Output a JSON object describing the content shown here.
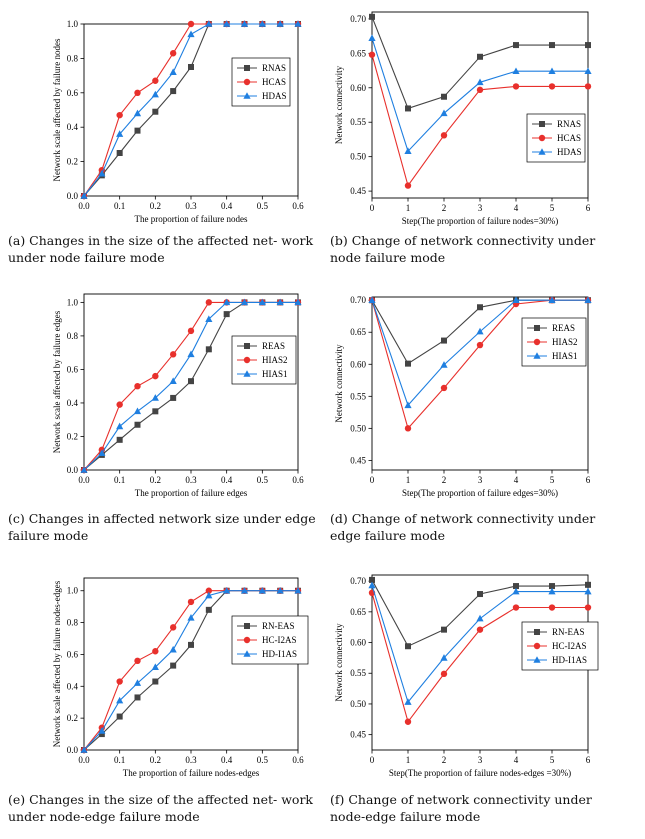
{
  "colors": {
    "black": "#444444",
    "red": "#e8302c",
    "blue": "#1f7fe0"
  },
  "chart_data": [
    {
      "id": "a",
      "type": "line",
      "caption": "(a) Changes in the size of the affected net- work under node failure mode",
      "xlabel": "The proportion of failure nodes",
      "ylabel": "Network scale affected by failure nodes",
      "x": [
        0,
        0.05,
        0.1,
        0.15,
        0.2,
        0.25,
        0.3,
        0.35,
        0.4,
        0.45,
        0.5,
        0.55,
        0.6
      ],
      "xlim": [
        0,
        0.6
      ],
      "ylim": [
        0,
        1.0
      ],
      "xticks": [
        "0.0",
        "0.1",
        "0.2",
        "0.3",
        "0.4",
        "0.5",
        "0.6"
      ],
      "yticks": [
        "0.0",
        "0.2",
        "0.4",
        "0.6",
        "0.8",
        "1.0"
      ],
      "legend_position": "top-right",
      "series": [
        {
          "name": "RNAS",
          "color": "black",
          "marker": "square",
          "values": [
            0,
            0.12,
            0.25,
            0.38,
            0.49,
            0.61,
            0.75,
            1.0,
            1.0,
            1.0,
            1.0,
            1.0,
            1.0
          ]
        },
        {
          "name": "HCAS",
          "color": "red",
          "marker": "circle",
          "values": [
            0,
            0.15,
            0.47,
            0.6,
            0.67,
            0.83,
            1.0,
            1.0,
            1.0,
            1.0,
            1.0,
            1.0,
            1.0
          ]
        },
        {
          "name": "HDAS",
          "color": "blue",
          "marker": "triangle",
          "values": [
            0,
            0.13,
            0.36,
            0.48,
            0.59,
            0.72,
            0.94,
            1.0,
            1.0,
            1.0,
            1.0,
            1.0,
            1.0
          ]
        }
      ]
    },
    {
      "id": "b",
      "type": "line",
      "caption": "(b) Change of network connectivity under node failure mode",
      "xlabel": "Step(The proportion of failure nodes=30%)",
      "ylabel": "Network connectivity",
      "x": [
        0,
        1,
        2,
        3,
        4,
        5,
        6
      ],
      "xlim": [
        0,
        6
      ],
      "ylim": [
        0.44,
        0.71
      ],
      "xticks": [
        "0",
        "1",
        "2",
        "3",
        "4",
        "5",
        "6"
      ],
      "yticks": [
        "0.45",
        "0.50",
        "0.55",
        "0.60",
        "0.65",
        "0.70"
      ],
      "legend_position": "bottom-right",
      "series": [
        {
          "name": "RNAS",
          "color": "black",
          "marker": "square",
          "values": [
            0.703,
            0.57,
            0.587,
            0.645,
            0.662,
            0.662,
            0.662
          ]
        },
        {
          "name": "HCAS",
          "color": "red",
          "marker": "circle",
          "values": [
            0.648,
            0.458,
            0.531,
            0.597,
            0.602,
            0.602,
            0.602
          ]
        },
        {
          "name": "HDAS",
          "color": "blue",
          "marker": "triangle",
          "values": [
            0.672,
            0.508,
            0.563,
            0.608,
            0.624,
            0.624,
            0.624
          ]
        }
      ]
    },
    {
      "id": "c",
      "type": "line",
      "caption": "(c) Changes in affected network size under edge failure mode",
      "xlabel": "The proportion of failure edges",
      "ylabel": "Network scale affected by failure edges",
      "x": [
        0,
        0.05,
        0.1,
        0.15,
        0.2,
        0.25,
        0.3,
        0.35,
        0.4,
        0.45,
        0.5,
        0.55,
        0.6
      ],
      "xlim": [
        0,
        0.6
      ],
      "ylim": [
        0,
        1.05
      ],
      "xticks": [
        "0.0",
        "0.1",
        "0.2",
        "0.3",
        "0.4",
        "0.5",
        "0.6"
      ],
      "yticks": [
        "0.0",
        "0.2",
        "0.4",
        "0.6",
        "0.8",
        "1.0"
      ],
      "legend_position": "right",
      "series": [
        {
          "name": "REAS",
          "color": "black",
          "marker": "square",
          "values": [
            0,
            0.09,
            0.18,
            0.27,
            0.35,
            0.43,
            0.53,
            0.72,
            0.93,
            1.0,
            1.0,
            1.0,
            1.0
          ]
        },
        {
          "name": "HIAS2",
          "color": "red",
          "marker": "circle",
          "values": [
            0,
            0.12,
            0.39,
            0.5,
            0.56,
            0.69,
            0.83,
            1.0,
            1.0,
            1.0,
            1.0,
            1.0,
            1.0
          ]
        },
        {
          "name": "HIAS1",
          "color": "blue",
          "marker": "triangle",
          "values": [
            0,
            0.1,
            0.26,
            0.35,
            0.43,
            0.53,
            0.69,
            0.9,
            1.0,
            1.0,
            1.0,
            1.0,
            1.0
          ]
        }
      ]
    },
    {
      "id": "d",
      "type": "line",
      "caption": "(d) Change of network connectivity under edge failure mode",
      "xlabel": "Step(The proportion of failure edges=30%)",
      "ylabel": "Network connectivity",
      "x": [
        0,
        1,
        2,
        3,
        4,
        5,
        6
      ],
      "xlim": [
        0,
        6
      ],
      "ylim": [
        0.435,
        0.705
      ],
      "xticks": [
        "0",
        "1",
        "2",
        "3",
        "4",
        "5",
        "6"
      ],
      "yticks": [
        "0.45",
        "0.50",
        "0.55",
        "0.60",
        "0.65",
        "0.70"
      ],
      "legend_position": "top-right",
      "series": [
        {
          "name": "REAS",
          "color": "black",
          "marker": "square",
          "values": [
            0.7,
            0.601,
            0.637,
            0.689,
            0.7,
            0.7,
            0.7
          ]
        },
        {
          "name": "HIAS2",
          "color": "red",
          "marker": "circle",
          "values": [
            0.7,
            0.5,
            0.563,
            0.63,
            0.694,
            0.7,
            0.7
          ]
        },
        {
          "name": "HIAS1",
          "color": "blue",
          "marker": "triangle",
          "values": [
            0.7,
            0.536,
            0.599,
            0.651,
            0.7,
            0.7,
            0.7
          ]
        }
      ]
    },
    {
      "id": "e",
      "type": "line",
      "caption": "(e) Changes in the size of the affected net- work under node-edge failure mode",
      "xlabel": "The proportion of failure nodes-edges",
      "ylabel": "Network scale affected by failure nodes-edges",
      "x": [
        0,
        0.05,
        0.1,
        0.15,
        0.2,
        0.25,
        0.3,
        0.35,
        0.4,
        0.45,
        0.5,
        0.55,
        0.6
      ],
      "xlim": [
        0,
        0.6
      ],
      "ylim": [
        0,
        1.08
      ],
      "xticks": [
        "0.0",
        "0.1",
        "0.2",
        "0.3",
        "0.4",
        "0.5",
        "0.6"
      ],
      "yticks": [
        "0.0",
        "0.2",
        "0.4",
        "0.6",
        "0.8",
        "1.0"
      ],
      "legend_position": "right",
      "series": [
        {
          "name": "RN-EAS",
          "color": "black",
          "marker": "square",
          "values": [
            0,
            0.1,
            0.21,
            0.33,
            0.43,
            0.53,
            0.66,
            0.88,
            1.0,
            1.0,
            1.0,
            1.0,
            1.0
          ]
        },
        {
          "name": "HC-I2AS",
          "color": "red",
          "marker": "circle",
          "values": [
            0,
            0.14,
            0.43,
            0.56,
            0.62,
            0.77,
            0.93,
            1.0,
            1.0,
            1.0,
            1.0,
            1.0,
            1.0
          ]
        },
        {
          "name": "HD-I1AS",
          "color": "blue",
          "marker": "triangle",
          "values": [
            0,
            0.12,
            0.31,
            0.42,
            0.52,
            0.63,
            0.83,
            0.97,
            1.0,
            1.0,
            1.0,
            1.0,
            1.0
          ]
        }
      ]
    },
    {
      "id": "f",
      "type": "line",
      "caption": "(f) Change of network connectivity under node-edge failure mode",
      "xlabel": "Step(The proportion of failure nodes-edges =30%)",
      "ylabel": "Network connectivity",
      "x": [
        0,
        1,
        2,
        3,
        4,
        5,
        6
      ],
      "xlim": [
        0,
        6
      ],
      "ylim": [
        0.425,
        0.71
      ],
      "xticks": [
        "0",
        "1",
        "2",
        "3",
        "4",
        "5",
        "6"
      ],
      "yticks": [
        "0.45",
        "0.50",
        "0.55",
        "0.60",
        "0.65",
        "0.70"
      ],
      "legend_position": "right",
      "series": [
        {
          "name": "RN-EAS",
          "color": "black",
          "marker": "square",
          "values": [
            0.702,
            0.594,
            0.621,
            0.679,
            0.692,
            0.692,
            0.694
          ]
        },
        {
          "name": "HC-I2AS",
          "color": "red",
          "marker": "circle",
          "values": [
            0.681,
            0.471,
            0.549,
            0.621,
            0.657,
            0.657,
            0.657
          ]
        },
        {
          "name": "HD-I1AS",
          "color": "blue",
          "marker": "triangle",
          "values": [
            0.693,
            0.503,
            0.575,
            0.639,
            0.683,
            0.683,
            0.683
          ]
        }
      ]
    }
  ]
}
